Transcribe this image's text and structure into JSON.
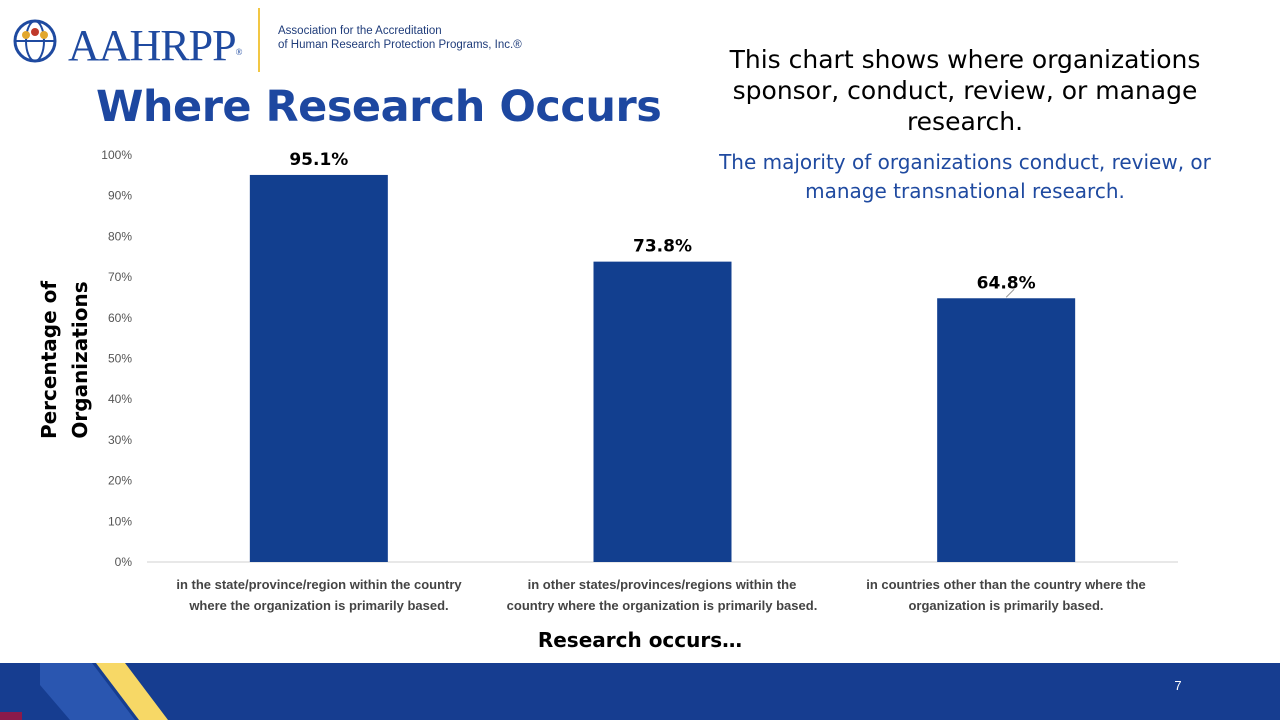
{
  "logo": {
    "wordmark": "AAHRPP",
    "tagline_line1": "Association for the Accreditation",
    "tagline_line2": "of Human Research Protection Programs, Inc.®"
  },
  "title": "Where Research Occurs",
  "description": "This chart shows where organizations sponsor, conduct, review, or manage research.",
  "subtitle": "The majority of organizations conduct, review, or manage transnational research.",
  "page_number": "7",
  "colors": {
    "bar": "#123f8f",
    "title": "#1d47a0",
    "footer_blue": "#163d90",
    "footer_yellow": "#f7d866",
    "footer_maroon": "#8b1a4a"
  },
  "chart_data": {
    "type": "bar",
    "categories": [
      "in the state/province/region within the country where the organization is primarily based.",
      "in other states/provinces/regions within the country where the organization is primarily based.",
      "in countries other than the country where the organization is primarily based."
    ],
    "category_lines": [
      [
        "in the state/province/region within the country",
        "where the organization is primarily based."
      ],
      [
        "in other states/provinces/regions within the",
        "country where the organization is primarily based."
      ],
      [
        "in countries other than the country where the",
        "organization is primarily based."
      ]
    ],
    "values": [
      95.1,
      73.8,
      64.8
    ],
    "data_labels": [
      "95.1%",
      "73.8%",
      "64.8%"
    ],
    "ylim": [
      0,
      100
    ],
    "yticks": [
      "0%",
      "10%",
      "20%",
      "30%",
      "40%",
      "50%",
      "60%",
      "70%",
      "80%",
      "90%",
      "100%"
    ],
    "ylabel_lines": [
      "Percentage of",
      "Organizations"
    ],
    "xlabel": "Research occurs…",
    "grid": false,
    "legend": "none"
  }
}
